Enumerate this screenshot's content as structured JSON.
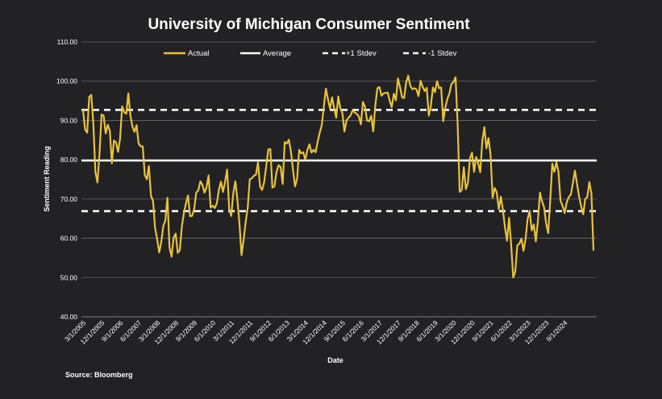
{
  "chart_data": {
    "type": "line",
    "title": "University of Michigan Consumer Sentiment",
    "xlabel": "Date",
    "ylabel": "Sentiment Reading",
    "source": "Source: Bloomberg",
    "ylim": [
      40,
      110
    ],
    "y_ticks": [
      "40.00",
      "50.00",
      "60.00",
      "70.00",
      "80.00",
      "90.00",
      "100.00",
      "110.00"
    ],
    "x_ticks": [
      "3/1/2005",
      "12/1/2005",
      "9/1/2006",
      "6/1/2007",
      "3/1/2008",
      "12/1/2008",
      "9/1/2009",
      "6/1/2010",
      "3/1/2011",
      "12/1/2011",
      "9/1/2012",
      "6/1/2013",
      "3/1/2014",
      "12/1/2014",
      "9/1/2015",
      "6/1/2016",
      "3/1/2017",
      "12/1/2017",
      "9/1/2018",
      "6/1/2019",
      "3/1/2020",
      "12/1/2020",
      "9/1/2021",
      "6/1/2022",
      "3/1/2023",
      "12/1/2023",
      "9/1/2024"
    ],
    "grid": true,
    "legend_position": "top",
    "legend": [
      {
        "label": "Actual",
        "style": "solid",
        "color": "#e8c23c"
      },
      {
        "label": "Average",
        "style": "solid",
        "color": "#ffffff"
      },
      {
        "label": "+1 Stdev",
        "style": "dashed",
        "color": "#ffffff"
      },
      {
        "label": "-1 Stdev",
        "style": "dashed",
        "color": "#ffffff"
      }
    ],
    "reference_lines": [
      {
        "name": "Average",
        "value": 79.8
      },
      {
        "name": "+1 Stdev",
        "value": 92.7
      },
      {
        "name": "-1 Stdev",
        "value": 66.9
      }
    ],
    "series": [
      {
        "name": "Actual",
        "color": "#e8c23c",
        "x_start": "3/1/2005",
        "x_end": "11/1/2024",
        "values": [
          92.6,
          87.7,
          86.9,
          96.0,
          96.5,
          89.1,
          76.9,
          74.2,
          81.6,
          91.5,
          91.2,
          86.7,
          88.9,
          87.4,
          79.1,
          84.9,
          84.4,
          82.0,
          85.4,
          93.6,
          92.1,
          91.7,
          96.9,
          91.3,
          88.4,
          87.1,
          88.8,
          84.1,
          83.4,
          83.4,
          76.1,
          75.0,
          78.4,
          70.8,
          69.5,
          62.6,
          59.8,
          56.4,
          59.0,
          63.1,
          64.6,
          70.3,
          57.7,
          55.3,
          60.1,
          61.2,
          56.3,
          56.9,
          63.0,
          66.4,
          68.9,
          70.9,
          65.6,
          65.7,
          67.5,
          71.6,
          72.2,
          74.5,
          73.6,
          71.6,
          73.0,
          76.0,
          67.8,
          68.3,
          67.7,
          68.9,
          72.3,
          74.4,
          71.8,
          74.4,
          77.5,
          67.5,
          65.7,
          71.5,
          74.5,
          69.8,
          63.7,
          55.7,
          59.5,
          64.1,
          67.7,
          75.0,
          75.3,
          75.9,
          76.2,
          79.3,
          73.2,
          72.3,
          74.3,
          78.3,
          82.6,
          82.7,
          72.9,
          73.2,
          76.9,
          78.6,
          78.1,
          73.8,
          84.5,
          84.1,
          85.1,
          82.1,
          77.5,
          73.2,
          75.1,
          82.5,
          81.6,
          81.9,
          80.0,
          82.5,
          83.9,
          81.8,
          82.5,
          81.9,
          84.6,
          86.9,
          88.8,
          93.6,
          98.1,
          95.4,
          93.0,
          95.9,
          93.1,
          90.7,
          96.1,
          93.1,
          91.9,
          87.2,
          90.0,
          90.7,
          91.3,
          92.6,
          92.0,
          91.7,
          91.0,
          89.0,
          94.7,
          93.5,
          90.0,
          89.8,
          91.2,
          87.2,
          93.8,
          98.2,
          98.5,
          96.3,
          96.9,
          97.0,
          97.1,
          95.0,
          93.4,
          96.8,
          95.1,
          100.7,
          98.5,
          95.9,
          95.7,
          99.7,
          101.4,
          98.8,
          98.0,
          98.2,
          97.9,
          96.2,
          100.1,
          98.6,
          97.5,
          98.3,
          91.2,
          93.8,
          98.4,
          97.2,
          100.0,
          98.2,
          98.4,
          89.8,
          93.2,
          95.5,
          96.8,
          99.3,
          99.8,
          101.0,
          89.1,
          71.8,
          72.3,
          78.1,
          72.5,
          74.1,
          80.4,
          81.8,
          76.9,
          80.7,
          79.0,
          76.8,
          84.9,
          88.3,
          82.9,
          85.5,
          81.2,
          70.3,
          72.8,
          71.7,
          67.4,
          70.6,
          67.2,
          62.8,
          59.4,
          65.2,
          58.4,
          50.0,
          51.5,
          58.2,
          58.6,
          59.9,
          56.8,
          59.7,
          64.9,
          67.0,
          62.0,
          63.5,
          59.2,
          64.4,
          71.6,
          69.4,
          67.9,
          63.8,
          61.3,
          69.7,
          79.0,
          76.9,
          79.4,
          76.9,
          69.5,
          68.3,
          66.4,
          69.1,
          70.5,
          71.1,
          74.0,
          77.2,
          73.9,
          70.6,
          68.2,
          66.1,
          70.0,
          70.5,
          74.3,
          71.4,
          57.0
        ]
      }
    ]
  }
}
